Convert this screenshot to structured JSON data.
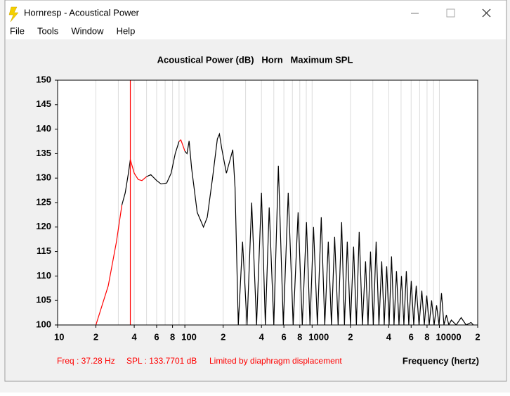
{
  "window": {
    "title": "Hornresp - Acoustical Power",
    "menu": [
      "File",
      "Tools",
      "Window",
      "Help"
    ]
  },
  "chart_data": {
    "type": "line",
    "title": "Acoustical Power (dB)   Horn   Maximum SPL",
    "xlabel": "Frequency (hertz)",
    "log_x": true,
    "grid": "x",
    "xlim": [
      10,
      20000
    ],
    "ylim": [
      100,
      150
    ],
    "xticks": [
      10,
      {
        "value": 20,
        "label": "2"
      },
      {
        "value": 40,
        "label": "4"
      },
      {
        "value": 60,
        "label": "6"
      },
      {
        "value": 80,
        "label": "8"
      },
      100,
      {
        "value": 200,
        "label": "2"
      },
      {
        "value": 400,
        "label": "4"
      },
      {
        "value": 600,
        "label": "6"
      },
      {
        "value": 800,
        "label": "8"
      },
      1000,
      {
        "value": 2000,
        "label": "2"
      },
      {
        "value": 4000,
        "label": "4"
      },
      {
        "value": 6000,
        "label": "6"
      },
      {
        "value": 8000,
        "label": "8"
      },
      10000,
      {
        "value": 20000,
        "label": "2"
      }
    ],
    "xminor": [
      30,
      50,
      70,
      90,
      300,
      500,
      700,
      900,
      3000,
      5000,
      7000,
      9000
    ],
    "yticks": [
      100,
      105,
      110,
      115,
      120,
      125,
      130,
      135,
      140,
      145,
      150
    ],
    "cursor_x": 37.28,
    "cursor_color": "#ff0000",
    "status": {
      "freq": "Freq : 37.28 Hz",
      "spl": "SPL : 133.7701 dB",
      "note": "Limited by diaphragm displacement"
    },
    "series": [
      {
        "color": "#ff0000",
        "x": [
          20,
          25,
          29,
          32,
          35,
          37.28,
          40,
          43,
          46,
          50,
          70,
          90,
          93,
          97,
          100
        ],
        "values": [
          100,
          108,
          117,
          124.5,
          null,
          133.77,
          131,
          129.7,
          129.5,
          130.3,
          null,
          137.5,
          137.8,
          136.5,
          135.5
        ]
      },
      {
        "color": "#000000",
        "x": [
          32,
          34,
          36,
          37.28,
          45,
          50,
          54,
          60,
          65,
          72,
          78,
          84,
          90,
          95,
          100,
          104,
          108,
          113,
          125,
          140,
          150,
          165,
          180,
          187,
          195,
          212,
          228,
          238,
          248,
          263,
          284,
          308,
          335,
          366,
          400,
          429,
          460,
          500,
          543,
          594,
          649,
          710,
          776,
          837,
          903,
          962,
          1026,
          1100,
          1180,
          1257,
          1340,
          1419,
          1503,
          1601,
          1706,
          1795,
          1889,
          2000,
          2118,
          2228,
          2344,
          2483,
          2630,
          2750,
          2877,
          3027,
          3184,
          3350,
          3524,
          3686,
          3855,
          4027,
          4207,
          4400,
          4603,
          4814,
          5035,
          5262,
          5500,
          5750,
          6012,
          6288,
          6577,
          6919,
          7278,
          7611,
          7960,
          8317,
          8690,
          9091,
          9510,
          9940,
          10390,
          10860,
          11350,
          11870,
          12420,
          13570,
          14830,
          16220,
          17730,
          18500
        ],
        "values": [
          124.5,
          127,
          131,
          133.77,
          null,
          130.3,
          130.7,
          129.5,
          128.8,
          129,
          131,
          135,
          137.5,
          null,
          135.5,
          135,
          137.6,
          132,
          123,
          120,
          122,
          130,
          138,
          139,
          136,
          131,
          134,
          135.8,
          128,
          100,
          117,
          100,
          125,
          100,
          127,
          100,
          124,
          100,
          132.5,
          100,
          127,
          100,
          123,
          100,
          121,
          100,
          120,
          100,
          122,
          100,
          117,
          100,
          118,
          100,
          121,
          100,
          117,
          100,
          116,
          100,
          119,
          100,
          113,
          100,
          115,
          100,
          117,
          100,
          113,
          100,
          112,
          100,
          114,
          100,
          111,
          100,
          110,
          100,
          111,
          100,
          109,
          100,
          108,
          100,
          107,
          100,
          106,
          100,
          105,
          100,
          104,
          100,
          106.5,
          100,
          102,
          100,
          101,
          100,
          101.5,
          100,
          100.5,
          100
        ]
      }
    ]
  }
}
